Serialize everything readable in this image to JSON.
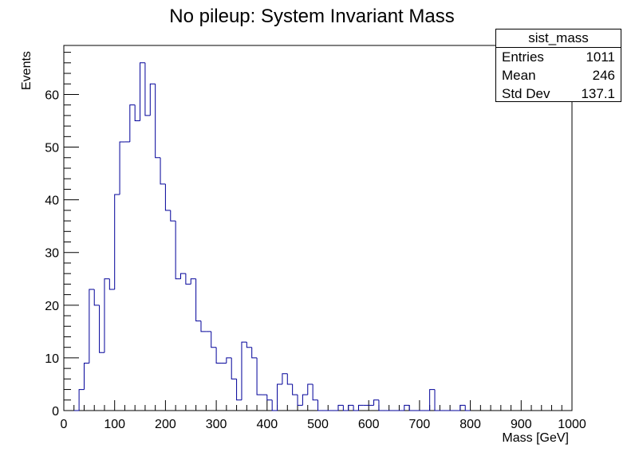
{
  "chart_data": {
    "type": "histogram",
    "title": "No pileup: System Invariant Mass",
    "xlabel": "Mass [GeV]",
    "ylabel": "Events",
    "xlim": [
      0,
      1000
    ],
    "ylim": [
      0,
      69.3
    ],
    "bin_width": 10,
    "x_ticks": [
      0,
      100,
      200,
      300,
      400,
      500,
      600,
      700,
      800,
      900,
      1000
    ],
    "y_ticks": [
      0,
      10,
      20,
      30,
      40,
      50,
      60
    ],
    "line_color": "#000099",
    "grid": false,
    "bins": [
      {
        "x": 20,
        "y": 0
      },
      {
        "x": 30,
        "y": 4
      },
      {
        "x": 40,
        "y": 9
      },
      {
        "x": 50,
        "y": 23
      },
      {
        "x": 60,
        "y": 20
      },
      {
        "x": 70,
        "y": 11
      },
      {
        "x": 80,
        "y": 25
      },
      {
        "x": 90,
        "y": 23
      },
      {
        "x": 100,
        "y": 41
      },
      {
        "x": 110,
        "y": 51
      },
      {
        "x": 120,
        "y": 51
      },
      {
        "x": 130,
        "y": 58
      },
      {
        "x": 140,
        "y": 55
      },
      {
        "x": 150,
        "y": 66
      },
      {
        "x": 160,
        "y": 56
      },
      {
        "x": 170,
        "y": 62
      },
      {
        "x": 180,
        "y": 48
      },
      {
        "x": 190,
        "y": 43
      },
      {
        "x": 200,
        "y": 38
      },
      {
        "x": 210,
        "y": 36
      },
      {
        "x": 220,
        "y": 25
      },
      {
        "x": 230,
        "y": 26
      },
      {
        "x": 240,
        "y": 24
      },
      {
        "x": 250,
        "y": 25
      },
      {
        "x": 260,
        "y": 17
      },
      {
        "x": 270,
        "y": 15
      },
      {
        "x": 280,
        "y": 15
      },
      {
        "x": 290,
        "y": 12
      },
      {
        "x": 300,
        "y": 9
      },
      {
        "x": 310,
        "y": 9
      },
      {
        "x": 320,
        "y": 10
      },
      {
        "x": 330,
        "y": 6
      },
      {
        "x": 340,
        "y": 2
      },
      {
        "x": 350,
        "y": 13
      },
      {
        "x": 360,
        "y": 12
      },
      {
        "x": 370,
        "y": 10
      },
      {
        "x": 380,
        "y": 3
      },
      {
        "x": 390,
        "y": 3
      },
      {
        "x": 400,
        "y": 2
      },
      {
        "x": 410,
        "y": 0
      },
      {
        "x": 420,
        "y": 5
      },
      {
        "x": 430,
        "y": 7
      },
      {
        "x": 440,
        "y": 5
      },
      {
        "x": 450,
        "y": 3
      },
      {
        "x": 460,
        "y": 1
      },
      {
        "x": 470,
        "y": 3
      },
      {
        "x": 480,
        "y": 5
      },
      {
        "x": 490,
        "y": 2
      },
      {
        "x": 500,
        "y": 0
      },
      {
        "x": 510,
        "y": 0
      },
      {
        "x": 520,
        "y": 0
      },
      {
        "x": 530,
        "y": 0
      },
      {
        "x": 540,
        "y": 1
      },
      {
        "x": 550,
        "y": 0
      },
      {
        "x": 560,
        "y": 1
      },
      {
        "x": 570,
        "y": 0
      },
      {
        "x": 580,
        "y": 1
      },
      {
        "x": 590,
        "y": 1
      },
      {
        "x": 600,
        "y": 1
      },
      {
        "x": 610,
        "y": 2
      },
      {
        "x": 620,
        "y": 0
      },
      {
        "x": 630,
        "y": 0
      },
      {
        "x": 640,
        "y": 0
      },
      {
        "x": 650,
        "y": 0
      },
      {
        "x": 660,
        "y": 0
      },
      {
        "x": 670,
        "y": 1
      },
      {
        "x": 680,
        "y": 0
      },
      {
        "x": 690,
        "y": 0
      },
      {
        "x": 700,
        "y": 0
      },
      {
        "x": 710,
        "y": 0
      },
      {
        "x": 720,
        "y": 4
      },
      {
        "x": 730,
        "y": 0
      },
      {
        "x": 740,
        "y": 0
      },
      {
        "x": 750,
        "y": 0
      },
      {
        "x": 760,
        "y": 0
      },
      {
        "x": 770,
        "y": 0
      },
      {
        "x": 780,
        "y": 1
      },
      {
        "x": 790,
        "y": 0
      }
    ]
  },
  "stats_box": {
    "title": "sist_mass",
    "entries_label": "Entries",
    "entries_value": "1011",
    "mean_label": "Mean",
    "mean_value": "246",
    "stddev_label": "Std Dev",
    "stddev_value": "137.1"
  }
}
